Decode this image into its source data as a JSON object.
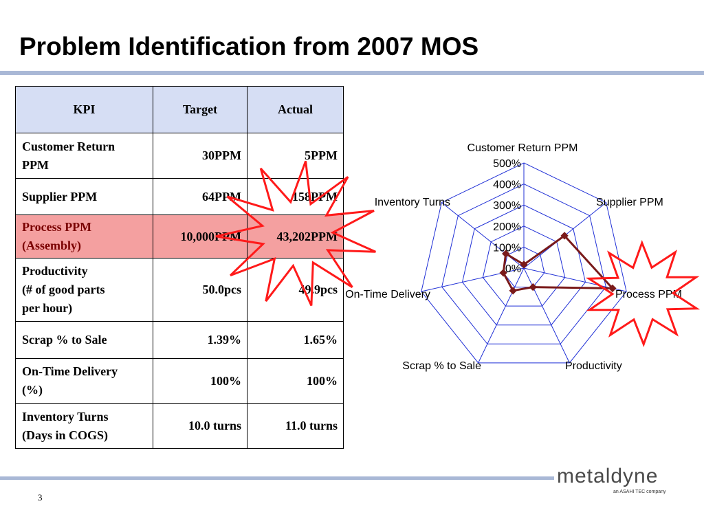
{
  "slide": {
    "title": "Problem Identification from 2007 MOS",
    "page_number": "3",
    "logo_text": "metaldyne",
    "logo_subtext": "an ASAHI TEC company"
  },
  "table": {
    "headers": [
      "KPI",
      "Target",
      "Actual"
    ],
    "rows": [
      {
        "kpi": [
          "Customer Return",
          "PPM"
        ],
        "target": "30PPM",
        "actual": "5PPM",
        "highlight": false
      },
      {
        "kpi": [
          "Supplier PPM"
        ],
        "target": "64PPM",
        "actual": "158PPM",
        "highlight": false
      },
      {
        "kpi": [
          "Process PPM",
          "(Assembly)"
        ],
        "target": "10,000PPM",
        "actual": "43,202PPM",
        "highlight": true
      },
      {
        "kpi": [
          "Productivity",
          "(# of good parts",
          "per hour)"
        ],
        "target": "50.0pcs",
        "actual": "49.9pcs",
        "highlight": false
      },
      {
        "kpi": [
          "Scrap % to Sale"
        ],
        "target": "1.39%",
        "actual": "1.65%",
        "highlight": false
      },
      {
        "kpi": [
          "On-Time Delivery",
          "(%)"
        ],
        "target": "100%",
        "actual": "100%",
        "highlight": false
      },
      {
        "kpi": [
          "Inventory Turns",
          "(Days in COGS)"
        ],
        "target": "10.0 turns",
        "actual": "11.0 turns",
        "highlight": false
      }
    ]
  },
  "chart_data": {
    "type": "radar",
    "categories": [
      "Customer Return PPM",
      "Supplier PPM",
      "Process PPM",
      "Productivity",
      "Scrap % to Sale",
      "On-Time Delivery",
      "Inventory Turns"
    ],
    "tick_labels": [
      "0%",
      "100%",
      "200%",
      "300%",
      "400%",
      "500%"
    ],
    "rmax": 500,
    "series": [
      {
        "values": [
          17,
          247,
          432,
          100,
          119,
          100,
          110
        ]
      }
    ],
    "colors": {
      "grid": "#1f2fd6",
      "series": "#7a1a1a",
      "burst_fill": "#ffffff",
      "burst_stroke": "#ff1a1a"
    }
  }
}
